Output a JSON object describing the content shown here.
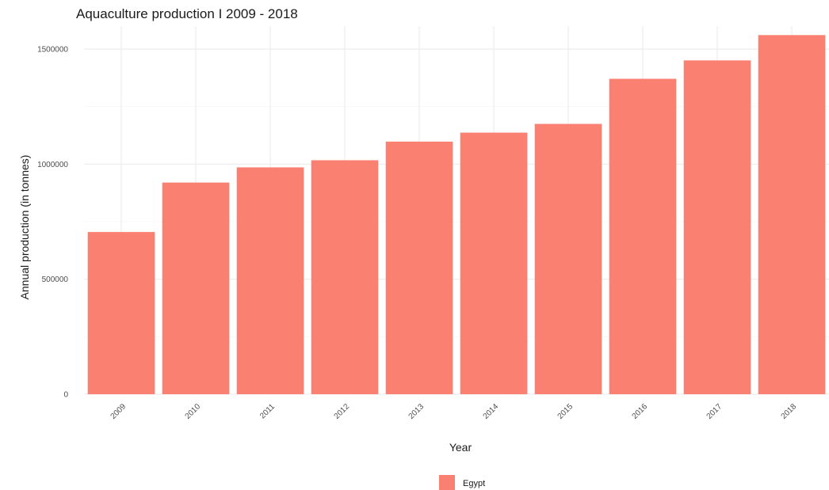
{
  "chart_data": {
    "type": "bar",
    "title": "Aquaculture production  I 2009 - 2018",
    "xlabel": "Year",
    "ylabel": "Annual production (in tonnes)",
    "categories": [
      "2009",
      "2010",
      "2011",
      "2012",
      "2013",
      "2014",
      "2015",
      "2016",
      "2017",
      "2018"
    ],
    "series": [
      {
        "name": "Egypt",
        "color": "#FA8072",
        "values": [
          705000,
          920000,
          986000,
          1017000,
          1098000,
          1137000,
          1175000,
          1371000,
          1451000,
          1561000
        ]
      }
    ],
    "ylim": [
      0,
      1600000
    ],
    "yticks": [
      0,
      500000,
      1000000,
      1500000
    ],
    "ytick_labels": [
      "0",
      "500000",
      "1000000",
      "1500000"
    ],
    "grid": true,
    "legend_position": "bottom"
  }
}
